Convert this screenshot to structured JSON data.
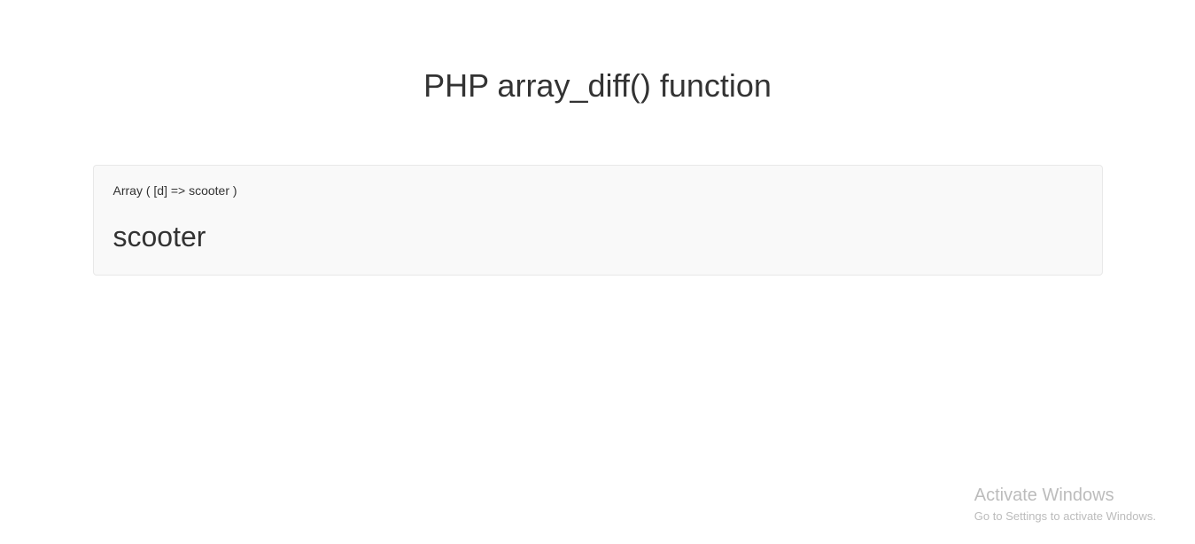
{
  "page": {
    "title": "PHP array_diff() function",
    "background_color": "#ffffff",
    "title_color": "#333333",
    "title_fontsize": 36
  },
  "output": {
    "array_text": "Array ( [d] => scooter )",
    "value_text": "scooter",
    "box_background": "#f9f9f9",
    "box_border": "#e8e8e8",
    "array_fontsize": 14,
    "value_fontsize": 32,
    "text_color": "#333333"
  },
  "watermark": {
    "title": "Activate Windows",
    "subtitle": "Go to Settings to activate Windows.",
    "color": "#bcbcbc",
    "title_fontsize": 20,
    "subtitle_fontsize": 13
  }
}
